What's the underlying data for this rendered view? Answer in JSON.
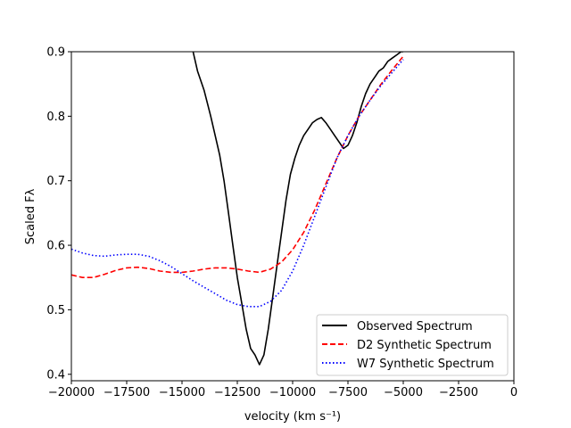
{
  "chart_data": {
    "type": "line",
    "title": "",
    "xlabel": "velocity (km s⁻¹)",
    "ylabel": "Scaled Fλ",
    "xlim": [
      -20000,
      0
    ],
    "ylim": [
      0.39,
      0.9
    ],
    "xticks": [
      -20000,
      -17500,
      -15000,
      -12500,
      -10000,
      -7500,
      -5000,
      -2500,
      0
    ],
    "xtick_labels": [
      "−20000",
      "−17500",
      "−15000",
      "−12500",
      "−10000",
      "−7500",
      "−5000",
      "−2500",
      "0"
    ],
    "yticks": [
      0.4,
      0.5,
      0.6,
      0.7,
      0.8,
      0.9
    ],
    "ytick_labels": [
      "0.4",
      "0.5",
      "0.6",
      "0.7",
      "0.8",
      "0.9"
    ],
    "grid": false,
    "legend_position": "lower-right",
    "series": [
      {
        "name": "Observed Spectrum",
        "color": "#000000",
        "style": "solid",
        "x": [
          -14500,
          -14300,
          -14000,
          -13700,
          -13500,
          -13300,
          -13100,
          -12900,
          -12700,
          -12500,
          -12300,
          -12100,
          -11900,
          -11700,
          -11500,
          -11300,
          -11100,
          -10900,
          -10700,
          -10500,
          -10300,
          -10100,
          -9900,
          -9700,
          -9500,
          -9300,
          -9100,
          -8900,
          -8700,
          -8500,
          -8300,
          -8100,
          -7900,
          -7700,
          -7500,
          -7300,
          -7100,
          -6900,
          -6700,
          -6500,
          -6300,
          -6100,
          -5900,
          -5700,
          -5500,
          -5300,
          -5100,
          -5000
        ],
        "y": [
          0.9,
          0.87,
          0.84,
          0.8,
          0.77,
          0.74,
          0.7,
          0.65,
          0.6,
          0.55,
          0.51,
          0.47,
          0.44,
          0.43,
          0.415,
          0.43,
          0.47,
          0.52,
          0.57,
          0.62,
          0.67,
          0.71,
          0.735,
          0.755,
          0.77,
          0.78,
          0.79,
          0.795,
          0.798,
          0.79,
          0.78,
          0.77,
          0.76,
          0.75,
          0.755,
          0.77,
          0.79,
          0.815,
          0.835,
          0.85,
          0.86,
          0.87,
          0.875,
          0.885,
          0.89,
          0.895,
          0.9,
          0.9
        ]
      },
      {
        "name": "D2 Synthetic Spectrum",
        "color": "#ff0000",
        "style": "dashed",
        "x": [
          -20000,
          -19500,
          -19000,
          -18500,
          -18000,
          -17500,
          -17000,
          -16500,
          -16000,
          -15500,
          -15000,
          -14500,
          -14000,
          -13500,
          -13000,
          -12500,
          -12000,
          -11500,
          -11000,
          -10500,
          -10000,
          -9500,
          -9000,
          -8500,
          -8000,
          -7500,
          -7000,
          -6500,
          -6000,
          -5500,
          -5000
        ],
        "y": [
          0.554,
          0.55,
          0.55,
          0.555,
          0.561,
          0.565,
          0.566,
          0.564,
          0.56,
          0.558,
          0.558,
          0.56,
          0.563,
          0.565,
          0.565,
          0.563,
          0.56,
          0.558,
          0.563,
          0.574,
          0.593,
          0.62,
          0.655,
          0.695,
          0.735,
          0.77,
          0.8,
          0.825,
          0.85,
          0.872,
          0.893
        ]
      },
      {
        "name": "W7 Synthetic Spectrum",
        "color": "#0000ff",
        "style": "dotted",
        "x": [
          -20000,
          -19500,
          -19000,
          -18500,
          -18000,
          -17500,
          -17000,
          -16500,
          -16000,
          -15500,
          -15000,
          -14500,
          -14000,
          -13500,
          -13000,
          -12500,
          -12000,
          -11500,
          -11000,
          -10500,
          -10000,
          -9500,
          -9000,
          -8500,
          -8000,
          -7500,
          -7000,
          -6500,
          -6000,
          -5500,
          -5000
        ],
        "y": [
          0.594,
          0.588,
          0.584,
          0.583,
          0.585,
          0.586,
          0.586,
          0.583,
          0.576,
          0.567,
          0.556,
          0.545,
          0.535,
          0.525,
          0.515,
          0.508,
          0.505,
          0.505,
          0.513,
          0.53,
          0.56,
          0.6,
          0.645,
          0.69,
          0.735,
          0.77,
          0.8,
          0.825,
          0.848,
          0.868,
          0.888
        ]
      }
    ]
  }
}
